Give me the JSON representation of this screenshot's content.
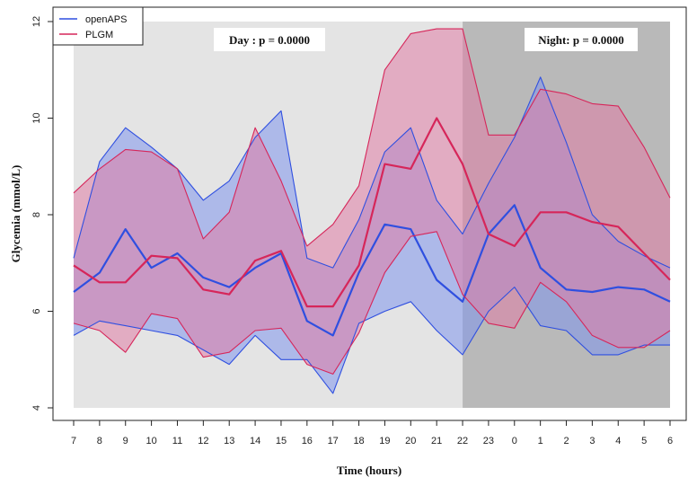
{
  "chart_data": {
    "type": "area",
    "xlabel": "Time (hours)",
    "ylabel": "Glycemia (mmol/L)",
    "ylim": [
      4,
      12
    ],
    "yticks": [
      4,
      6,
      8,
      10,
      12
    ],
    "categories": [
      "7",
      "8",
      "9",
      "10",
      "11",
      "12",
      "13",
      "14",
      "15",
      "16",
      "17",
      "18",
      "19",
      "20",
      "21",
      "22",
      "23",
      "0",
      "1",
      "2",
      "3",
      "4",
      "5",
      "6"
    ],
    "grid": false,
    "legend_position": "top-left",
    "regions": [
      {
        "label": "Day : p = 0.0000",
        "from": "7",
        "to": "22",
        "color": "#e4e4e4"
      },
      {
        "label": "Night: p = 0.0000",
        "from": "22",
        "to": "6",
        "color": "#b9b9b9"
      }
    ],
    "series": [
      {
        "name": "openAPS",
        "color": "#2f4fe0",
        "fill": "#7f95ec",
        "median": [
          6.4,
          6.8,
          7.7,
          6.9,
          7.2,
          6.7,
          6.5,
          6.9,
          7.2,
          5.8,
          5.5,
          6.8,
          7.8,
          7.7,
          6.65,
          6.2,
          7.6,
          8.2,
          6.9,
          6.45,
          6.4,
          6.5,
          6.45,
          6.2
        ],
        "upper": [
          7.1,
          9.1,
          9.8,
          9.4,
          8.95,
          8.3,
          8.7,
          9.6,
          10.15,
          7.1,
          6.9,
          7.9,
          9.3,
          9.8,
          8.3,
          7.6,
          8.65,
          9.6,
          10.85,
          9.5,
          8.0,
          7.45,
          7.15,
          6.9
        ],
        "lower": [
          5.5,
          5.8,
          5.7,
          5.6,
          5.5,
          5.2,
          4.9,
          5.5,
          5.0,
          5.0,
          4.3,
          5.75,
          6.0,
          6.2,
          5.6,
          5.1,
          6.0,
          6.5,
          5.7,
          5.6,
          5.1,
          5.1,
          5.3,
          5.3
        ]
      },
      {
        "name": "PLGM",
        "color": "#d6265a",
        "fill": "#e07ea6",
        "median": [
          6.95,
          6.6,
          6.6,
          7.15,
          7.1,
          6.45,
          6.35,
          7.05,
          7.25,
          6.1,
          6.1,
          6.95,
          9.05,
          8.95,
          10.0,
          9.05,
          7.6,
          7.35,
          8.05,
          8.05,
          7.85,
          7.75,
          7.2,
          6.65
        ],
        "upper": [
          8.45,
          8.95,
          9.35,
          9.3,
          8.95,
          7.5,
          8.05,
          9.8,
          8.7,
          7.35,
          7.8,
          8.6,
          11.0,
          11.75,
          11.85,
          11.85,
          9.65,
          9.65,
          10.6,
          10.5,
          10.3,
          10.25,
          9.4,
          8.35
        ],
        "lower": [
          5.75,
          5.6,
          5.15,
          5.95,
          5.85,
          5.05,
          5.15,
          5.6,
          5.65,
          4.9,
          4.7,
          5.55,
          6.8,
          7.55,
          7.65,
          6.35,
          5.75,
          5.65,
          6.6,
          6.2,
          5.5,
          5.25,
          5.25,
          5.6
        ]
      }
    ]
  }
}
